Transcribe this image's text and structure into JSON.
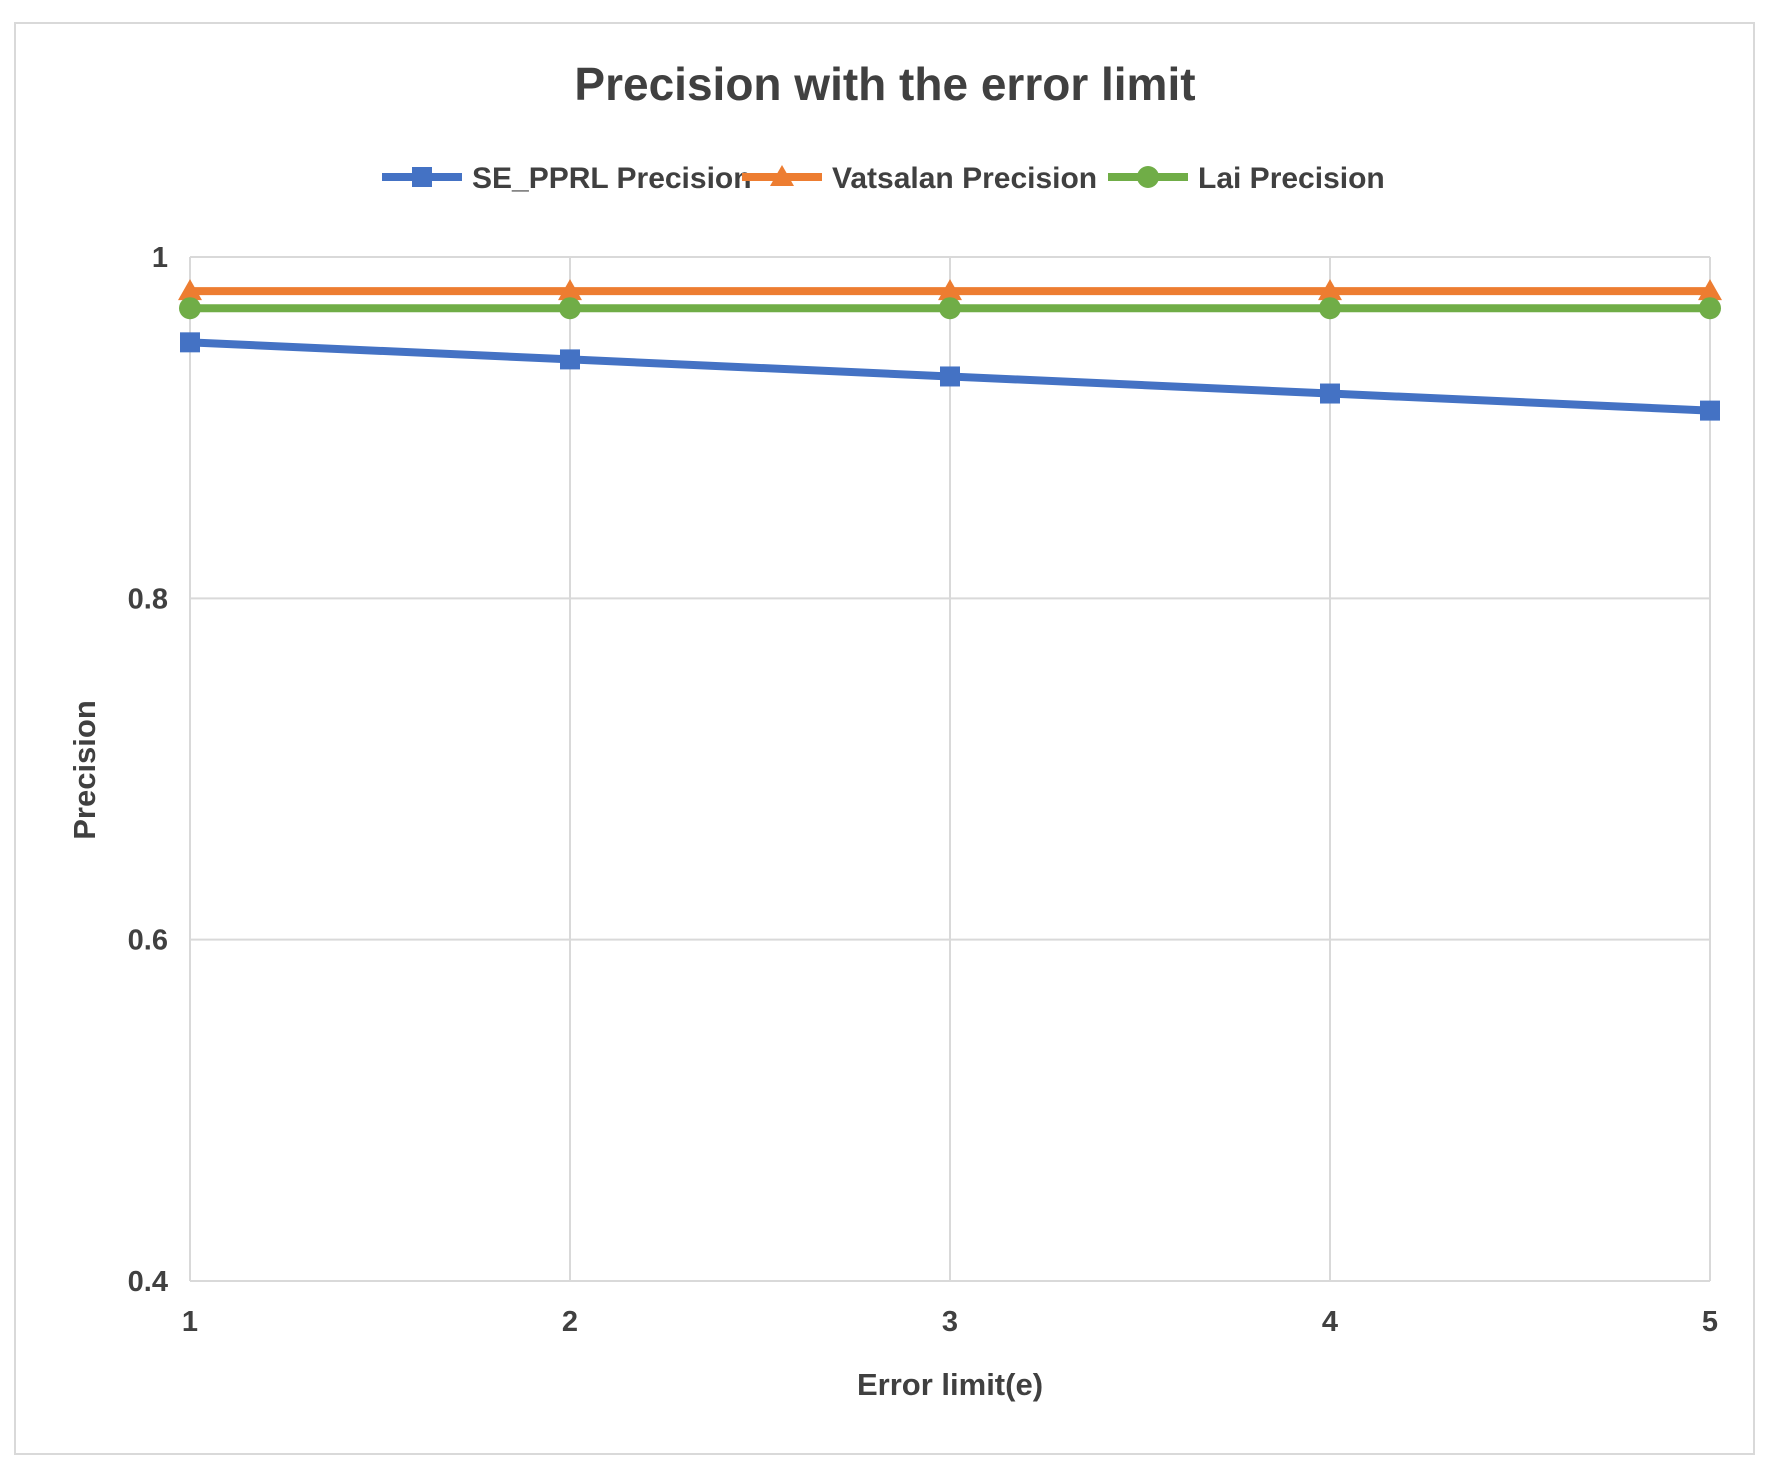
{
  "chart_data": {
    "type": "line",
    "title": "Precision with the error limit",
    "xlabel": "Error limit(e)",
    "ylabel": "Precision",
    "x": [
      1,
      2,
      3,
      4,
      5
    ],
    "x_tick_labels": [
      "1",
      "2",
      "3",
      "4",
      "5"
    ],
    "ylim": [
      0.4,
      1
    ],
    "y_ticks": [
      0.4,
      0.6,
      0.8,
      1
    ],
    "y_tick_labels": [
      "0.4",
      "0.6",
      "0.8",
      "1"
    ],
    "grid": true,
    "legend_position": "top",
    "series": [
      {
        "name": "SE_PPRL Precision",
        "values": [
          0.95,
          0.94,
          0.93,
          0.92,
          0.91
        ],
        "color": "#4472c4",
        "marker": "square"
      },
      {
        "name": "Vatsalan Precision",
        "values": [
          0.98,
          0.98,
          0.98,
          0.98,
          0.98
        ],
        "color": "#ed7d31",
        "marker": "triangle"
      },
      {
        "name": "Lai Precision",
        "values": [
          0.97,
          0.97,
          0.97,
          0.97,
          0.97
        ],
        "color": "#70ad47",
        "marker": "circle"
      }
    ]
  }
}
